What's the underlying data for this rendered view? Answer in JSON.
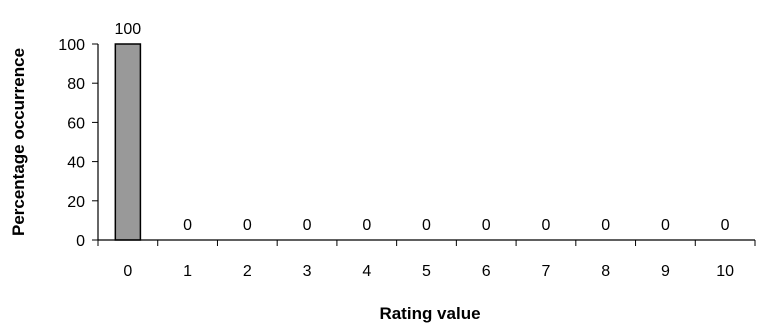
{
  "chart_data": {
    "type": "bar",
    "title": "",
    "xlabel": "Rating value",
    "ylabel": "Percentage occurrence",
    "categories": [
      "0",
      "1",
      "2",
      "3",
      "4",
      "5",
      "6",
      "7",
      "8",
      "9",
      "10"
    ],
    "values": [
      100,
      0,
      0,
      0,
      0,
      0,
      0,
      0,
      0,
      0,
      0
    ],
    "data_labels": [
      "100",
      "0",
      "0",
      "0",
      "0",
      "0",
      "0",
      "0",
      "0",
      "0",
      "0"
    ],
    "ylim": [
      0,
      100
    ],
    "y_ticks": [
      0,
      20,
      40,
      60,
      80,
      100
    ],
    "y_tick_labels": [
      "0",
      "20",
      "40",
      "60",
      "80",
      "100"
    ],
    "grid": false,
    "legend": "none",
    "colors": {
      "bar_fill": "#999999",
      "bar_stroke": "#000000",
      "axis": "#000000"
    }
  }
}
